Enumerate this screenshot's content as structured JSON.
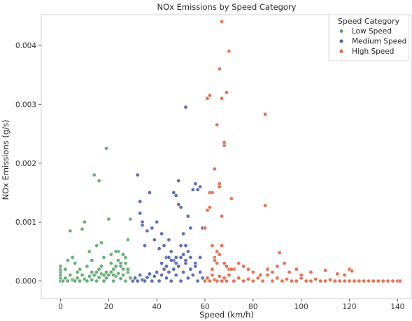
{
  "chart_data": {
    "type": "scatter",
    "title": "NOx Emissions by Speed Category",
    "xlabel": "Speed (km/h)",
    "ylabel": "NOx Emissions (g/s)",
    "xlim": [
      -8,
      146
    ],
    "ylim": [
      -0.0003,
      0.00452
    ],
    "xticks": [
      0,
      20,
      40,
      60,
      80,
      100,
      120,
      140
    ],
    "xtick_labels": [
      "0",
      "20",
      "40",
      "60",
      "80",
      "100",
      "120",
      "140"
    ],
    "yticks": [
      0.0,
      0.001,
      0.002,
      0.003,
      0.004
    ],
    "ytick_labels": [
      "0.000",
      "0.001",
      "0.002",
      "0.003",
      "0.004"
    ],
    "grid": false,
    "legend": {
      "title": "Speed Category",
      "placement": "top-right"
    },
    "series": [
      {
        "name": "Low Speed",
        "color": "#55a868",
        "points": [
          [
            0,
            0.0
          ],
          [
            0,
            5e-05
          ],
          [
            0,
            0.0001
          ],
          [
            0,
            0.00015
          ],
          [
            0,
            0.0002
          ],
          [
            0,
            0.00025
          ],
          [
            1,
            0.0
          ],
          [
            2,
            5e-05
          ],
          [
            3,
            0.0
          ],
          [
            4,
            0.0001
          ],
          [
            5,
            2e-05
          ],
          [
            6,
            0.0
          ],
          [
            7,
            5e-05
          ],
          [
            8,
            0.0
          ],
          [
            9,
            0.0001
          ],
          [
            10,
            3e-05
          ],
          [
            11,
            0.0
          ],
          [
            12,
            8e-05
          ],
          [
            13,
            2e-05
          ],
          [
            14,
            0.0001
          ],
          [
            15,
            0.0
          ],
          [
            16,
            6e-05
          ],
          [
            17,
            0.00012
          ],
          [
            18,
            0.0
          ],
          [
            19,
            5e-05
          ],
          [
            20,
            0.0001
          ],
          [
            21,
            0.00015
          ],
          [
            22,
            0.0
          ],
          [
            23,
            8e-05
          ],
          [
            24,
            0.00013
          ],
          [
            25,
            4e-05
          ],
          [
            26,
            0.0001
          ],
          [
            27,
            0.0
          ],
          [
            28,
            0.00015
          ],
          [
            29,
            5e-05
          ],
          [
            2,
            0.0002
          ],
          [
            3,
            0.00035
          ],
          [
            4,
            0.00085
          ],
          [
            5,
            0.0004
          ],
          [
            6,
            0.0003
          ],
          [
            7,
            0.00015
          ],
          [
            8,
            0.0002
          ],
          [
            9,
            0.00088
          ],
          [
            10,
            0.001
          ],
          [
            11,
            0.00025
          ],
          [
            12,
            0.0005
          ],
          [
            13,
            0.00035
          ],
          [
            14,
            0.0018
          ],
          [
            15,
            0.0006
          ],
          [
            16,
            0.0017
          ],
          [
            17,
            0.00065
          ],
          [
            18,
            0.0004
          ],
          [
            19,
            0.00225
          ],
          [
            20,
            0.00105
          ],
          [
            21,
            0.0003
          ],
          [
            22,
            0.0002
          ],
          [
            23,
            0.00025
          ],
          [
            24,
            0.0005
          ],
          [
            25,
            0.0003
          ],
          [
            26,
            0.0002
          ],
          [
            27,
            0.0004
          ],
          [
            28,
            0.0007
          ],
          [
            29,
            0.00105
          ],
          [
            21,
            0.00045
          ],
          [
            23,
            0.0005
          ],
          [
            24,
            0.00035
          ],
          [
            25,
            0.00025
          ],
          [
            26,
            0.00045
          ],
          [
            27,
            0.0003
          ],
          [
            28,
            0.0002
          ],
          [
            16,
            0.0002
          ],
          [
            17,
            0.00025
          ],
          [
            18,
            0.0001
          ],
          [
            19,
            0.00015
          ],
          [
            22,
            0.0001
          ],
          [
            15,
            0.00015
          ],
          [
            13,
            0.00015
          ]
        ]
      },
      {
        "name": "Medium Speed",
        "color": "#4c5fae",
        "points": [
          [
            30,
            0.0
          ],
          [
            31,
            5e-05
          ],
          [
            32,
            0.0
          ],
          [
            33,
            0.0001
          ],
          [
            34,
            2e-05
          ],
          [
            35,
            0.0
          ],
          [
            36,
            6e-05
          ],
          [
            37,
            0.00012
          ],
          [
            38,
            0.0
          ],
          [
            39,
            8e-05
          ],
          [
            40,
            0.00015
          ],
          [
            41,
            0.0
          ],
          [
            42,
            0.0001
          ],
          [
            43,
            0.0002
          ],
          [
            44,
            5e-05
          ],
          [
            45,
            0.00015
          ],
          [
            46,
            0.0
          ],
          [
            47,
            0.0002
          ],
          [
            48,
            0.0001
          ],
          [
            49,
            0.00025
          ],
          [
            50,
            0.0
          ],
          [
            51,
            0.00015
          ],
          [
            52,
            0.0003
          ],
          [
            53,
            5e-05
          ],
          [
            54,
            0.0002
          ],
          [
            55,
            0.0001
          ],
          [
            56,
            0.00025
          ],
          [
            57,
            0.0
          ],
          [
            58,
            0.00015
          ],
          [
            59,
            5e-05
          ],
          [
            32,
            0.0018
          ],
          [
            33,
            0.00135
          ],
          [
            34,
            0.00095
          ],
          [
            35,
            0.0006
          ],
          [
            36,
            0.00085
          ],
          [
            37,
            0.0015
          ],
          [
            38,
            0.0009
          ],
          [
            39,
            0.0007
          ],
          [
            40,
            0.001
          ],
          [
            41,
            0.00055
          ],
          [
            42,
            0.0008
          ],
          [
            43,
            0.0006
          ],
          [
            44,
            0.0004
          ],
          [
            45,
            0.0007
          ],
          [
            46,
            0.0005
          ],
          [
            47,
            0.00035
          ],
          [
            48,
            0.0004
          ],
          [
            49,
            0.0017
          ],
          [
            50,
            0.0006
          ],
          [
            51,
            0.0008
          ],
          [
            52,
            0.0006
          ],
          [
            52,
            0.00295
          ],
          [
            53,
            0.0011
          ],
          [
            54,
            0.0009
          ],
          [
            55,
            0.00155
          ],
          [
            56,
            0.00165
          ],
          [
            57,
            0.00155
          ],
          [
            58,
            0.0016
          ],
          [
            59,
            0.0009
          ],
          [
            49,
            0.0013
          ],
          [
            48,
            0.00145
          ],
          [
            50,
            0.00125
          ],
          [
            47,
            0.0015
          ],
          [
            33,
            0.00115
          ],
          [
            34,
            0.001
          ],
          [
            42,
            0.0003
          ],
          [
            44,
            0.00025
          ],
          [
            46,
            0.00035
          ],
          [
            48,
            0.0003
          ],
          [
            50,
            0.0004
          ],
          [
            52,
            0.00035
          ],
          [
            54,
            0.0004
          ],
          [
            56,
            0.0003
          ],
          [
            58,
            0.0004
          ],
          [
            45,
            0.0004
          ],
          [
            51,
            0.00045
          ],
          [
            53,
            0.0005
          ]
        ]
      },
      {
        "name": "High Speed",
        "color": "#e8613f",
        "points": [
          [
            60,
            0.0
          ],
          [
            61,
            5e-05
          ],
          [
            62,
            0.0
          ],
          [
            63,
            0.0001
          ],
          [
            64,
            2e-05
          ],
          [
            65,
            0.0
          ],
          [
            66,
            8e-05
          ],
          [
            67,
            0.0
          ],
          [
            68,
            5e-05
          ],
          [
            69,
            0.0
          ],
          [
            70,
            0.0001
          ],
          [
            72,
            0.0
          ],
          [
            74,
            5e-05
          ],
          [
            76,
            0.0
          ],
          [
            78,
            3e-05
          ],
          [
            80,
            0.0
          ],
          [
            82,
            5e-05
          ],
          [
            84,
            0.0
          ],
          [
            86,
            0.0001
          ],
          [
            88,
            0.0
          ],
          [
            90,
            5e-05
          ],
          [
            92,
            0.0
          ],
          [
            94,
            3e-05
          ],
          [
            96,
            0.0
          ],
          [
            98,
            0.0
          ],
          [
            100,
            5e-05
          ],
          [
            102,
            0.0
          ],
          [
            104,
            0.0
          ],
          [
            106,
            3e-05
          ],
          [
            108,
            0.0
          ],
          [
            110,
            0.0
          ],
          [
            112,
            2e-05
          ],
          [
            114,
            0.0
          ],
          [
            116,
            0.0
          ],
          [
            118,
            0.0
          ],
          [
            120,
            0.0
          ],
          [
            122,
            0.0
          ],
          [
            124,
            0.0
          ],
          [
            126,
            0.0
          ],
          [
            128,
            0.0
          ],
          [
            130,
            0.0
          ],
          [
            132,
            0.0
          ],
          [
            134,
            0.0
          ],
          [
            136,
            0.0
          ],
          [
            138,
            0.0
          ],
          [
            140,
            0.0
          ],
          [
            141,
            0.0
          ],
          [
            60,
            0.0009
          ],
          [
            61,
            0.0012
          ],
          [
            62,
            0.0015
          ],
          [
            63,
            0.0006
          ],
          [
            64,
            0.0004
          ],
          [
            65,
            0.0003
          ],
          [
            61,
            0.0031
          ],
          [
            62,
            0.00315
          ],
          [
            64,
            0.0019
          ],
          [
            65,
            0.00265
          ],
          [
            66,
            0.0036
          ],
          [
            67,
            0.0044
          ],
          [
            67,
            0.0031
          ],
          [
            68,
            0.0023
          ],
          [
            68,
            0.00235
          ],
          [
            69,
            0.0032
          ],
          [
            70,
            0.0039
          ],
          [
            71,
            0.0014
          ],
          [
            66,
            0.0016
          ],
          [
            66,
            0.00165
          ],
          [
            63,
            0.0015
          ],
          [
            62,
            0.00125
          ],
          [
            67,
            0.0011
          ],
          [
            85,
            0.00283
          ],
          [
            85,
            0.00128
          ],
          [
            88,
            0.00015
          ],
          [
            90,
            0.00025
          ],
          [
            91,
            0.00048
          ],
          [
            93,
            0.0003
          ],
          [
            95,
            0.00015
          ],
          [
            98,
            0.0002
          ],
          [
            100,
            0.0001
          ],
          [
            104,
            0.00015
          ],
          [
            110,
            0.00018
          ],
          [
            115,
            0.00012
          ],
          [
            120,
            0.0002
          ],
          [
            121,
            0.00017
          ],
          [
            118,
            0.0001
          ],
          [
            72,
            0.0002
          ],
          [
            74,
            0.0003
          ],
          [
            76,
            0.00025
          ],
          [
            78,
            0.0002
          ],
          [
            80,
            0.00015
          ],
          [
            83,
            0.0001
          ],
          [
            86,
            0.0002
          ],
          [
            64,
            0.00035
          ],
          [
            63,
            0.0002
          ],
          [
            66,
            0.00045
          ],
          [
            65,
            0.0005
          ],
          [
            67,
            0.0006
          ],
          [
            68,
            0.0003
          ],
          [
            69,
            0.00025
          ],
          [
            70,
            0.0002
          ],
          [
            71,
            0.0002
          ]
        ]
      }
    ]
  }
}
